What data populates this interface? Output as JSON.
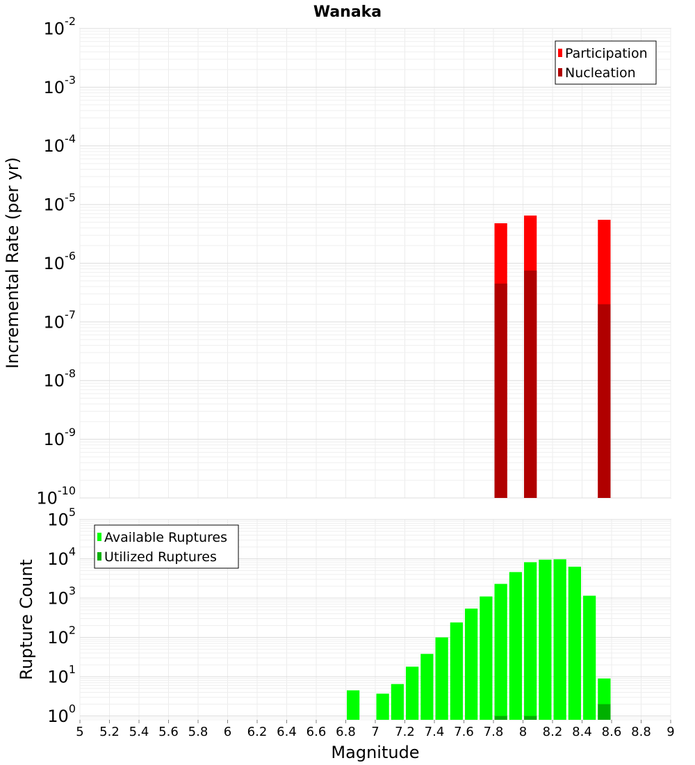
{
  "chart_data": [
    {
      "type": "bar",
      "title": "Wanaka",
      "ylabel": "Incremental Rate (per yr)",
      "xlabel": "",
      "y_scale": "log",
      "ylim": [
        1e-10,
        0.01
      ],
      "xlim": [
        5,
        9
      ],
      "bar_width": 0.1,
      "grid": true,
      "legend_position": "top-right",
      "series": [
        {
          "name": "Participation",
          "color": "#ff0000",
          "points": [
            {
              "x": 7.85,
              "y": 4.8e-06
            },
            {
              "x": 8.05,
              "y": 6.5e-06
            },
            {
              "x": 8.55,
              "y": 5.5e-06
            }
          ]
        },
        {
          "name": "Nucleation",
          "color": "#b00000",
          "points": [
            {
              "x": 7.85,
              "y": 4.5e-07
            },
            {
              "x": 8.05,
              "y": 7.5e-07
            },
            {
              "x": 8.55,
              "y": 2e-07
            }
          ]
        }
      ],
      "y_ticks": [
        {
          "base": "10",
          "exp": "-10"
        },
        {
          "base": "10",
          "exp": "-9"
        },
        {
          "base": "10",
          "exp": "-8"
        },
        {
          "base": "10",
          "exp": "-7"
        },
        {
          "base": "10",
          "exp": "-6"
        },
        {
          "base": "10",
          "exp": "-5"
        },
        {
          "base": "10",
          "exp": "-4"
        },
        {
          "base": "10",
          "exp": "-3"
        },
        {
          "base": "10",
          "exp": "-2"
        }
      ]
    },
    {
      "type": "bar",
      "title": "",
      "ylabel": "Rupture Count",
      "xlabel": "Magnitude",
      "y_scale": "log",
      "ylim": [
        0.8,
        100000.0
      ],
      "xlim": [
        5,
        9
      ],
      "bar_width": 0.1,
      "grid": true,
      "legend_position": "top-left",
      "series": [
        {
          "name": "Available Ruptures",
          "color": "#00ff00",
          "points": [
            {
              "x": 6.85,
              "y": 4.5
            },
            {
              "x": 7.05,
              "y": 3.7
            },
            {
              "x": 7.15,
              "y": 6.5
            },
            {
              "x": 7.25,
              "y": 18
            },
            {
              "x": 7.35,
              "y": 38
            },
            {
              "x": 7.45,
              "y": 100
            },
            {
              "x": 7.55,
              "y": 240
            },
            {
              "x": 7.65,
              "y": 540
            },
            {
              "x": 7.75,
              "y": 1100
            },
            {
              "x": 7.85,
              "y": 2300
            },
            {
              "x": 7.95,
              "y": 4600
            },
            {
              "x": 8.05,
              "y": 8200
            },
            {
              "x": 8.15,
              "y": 9500
            },
            {
              "x": 8.25,
              "y": 9700
            },
            {
              "x": 8.35,
              "y": 6300
            },
            {
              "x": 8.45,
              "y": 1150
            },
            {
              "x": 8.55,
              "y": 9
            }
          ]
        },
        {
          "name": "Utilized Ruptures",
          "color": "#00b000",
          "points": [
            {
              "x": 7.85,
              "y": 1
            },
            {
              "x": 8.05,
              "y": 1
            },
            {
              "x": 8.55,
              "y": 2
            }
          ]
        }
      ],
      "y_ticks": [
        {
          "base": "10",
          "exp": "0"
        },
        {
          "base": "10",
          "exp": "1"
        },
        {
          "base": "10",
          "exp": "2"
        },
        {
          "base": "10",
          "exp": "3"
        },
        {
          "base": "10",
          "exp": "4"
        },
        {
          "base": "10",
          "exp": "5"
        }
      ],
      "x_ticks": [
        "5",
        "5.2",
        "5.4",
        "5.6",
        "5.8",
        "6",
        "6.2",
        "6.4",
        "6.6",
        "6.8",
        "7",
        "7.2",
        "7.4",
        "7.6",
        "7.8",
        "8",
        "8.2",
        "8.4",
        "8.6",
        "8.8",
        "9"
      ]
    }
  ]
}
